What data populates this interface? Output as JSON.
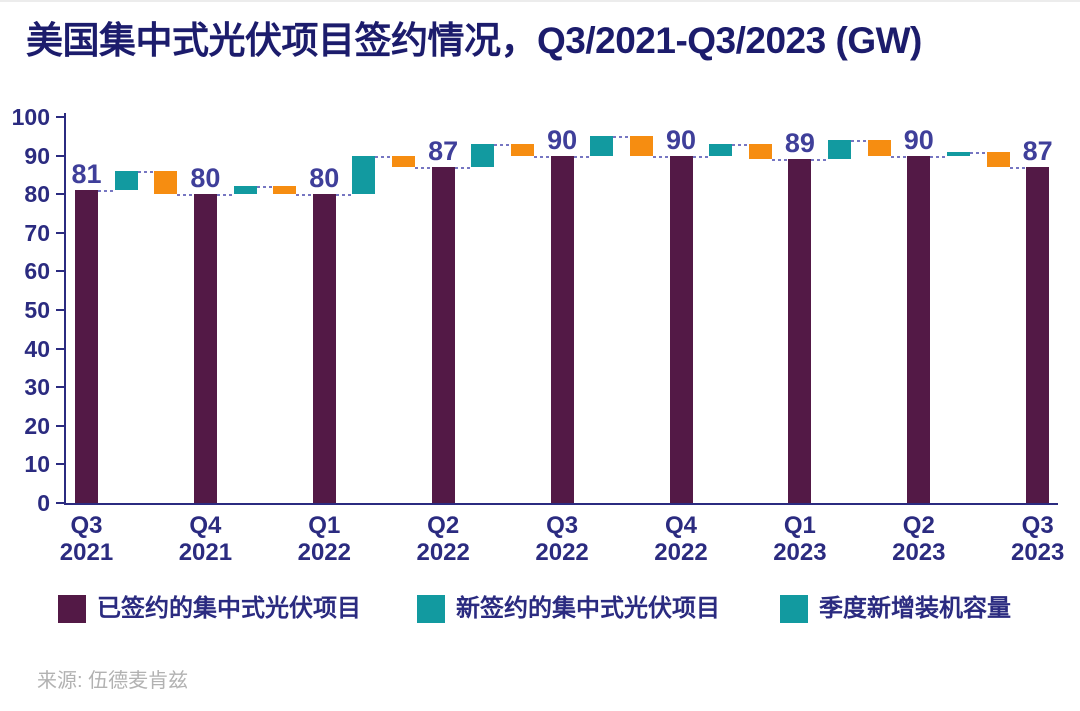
{
  "title": "美国集中式光伏项目签约情况，Q3/2021-Q3/2023 (GW)",
  "source": "来源: 伍德麦肯兹",
  "colors": {
    "backlog": "#531946",
    "new_signed": "#129aa0",
    "installed": "#f68d11",
    "axis": "#2b2b80",
    "value_label": "#3f3f9a",
    "connector": "#7676c2",
    "title": "#1c1c6c",
    "source": "#b2b2b2"
  },
  "legend": [
    {
      "label": "已签约的集中式光伏项目",
      "color": "#531946"
    },
    {
      "label": "新签约的集中式光伏项目",
      "color": "#129aa0"
    },
    {
      "label": "季度新增装机容量",
      "color": "#129aa0"
    }
  ],
  "chart_data": {
    "type": "bar",
    "subtype": "waterfall",
    "title": "美国集中式光伏项目签约情况，Q3/2021-Q3/2023 (GW)",
    "unit": "GW",
    "categories": [
      {
        "quarter": "Q3",
        "year": "2021"
      },
      {
        "quarter": "Q4",
        "year": "2021"
      },
      {
        "quarter": "Q1",
        "year": "2022"
      },
      {
        "quarter": "Q2",
        "year": "2022"
      },
      {
        "quarter": "Q3",
        "year": "2022"
      },
      {
        "quarter": "Q4",
        "year": "2022"
      },
      {
        "quarter": "Q1",
        "year": "2023"
      },
      {
        "quarter": "Q2",
        "year": "2023"
      },
      {
        "quarter": "Q3",
        "year": "2023"
      }
    ],
    "values": [
      81,
      80,
      80,
      87,
      90,
      90,
      89,
      90,
      87
    ],
    "connectors": [
      {
        "new_signed": 5,
        "installed": 6
      },
      {
        "new_signed": 2,
        "installed": 2
      },
      {
        "new_signed": 10,
        "installed": 3
      },
      {
        "new_signed": 6,
        "installed": 3
      },
      {
        "new_signed": 5,
        "installed": 5
      },
      {
        "new_signed": 3,
        "installed": 4
      },
      {
        "new_signed": 5,
        "installed": 4
      },
      {
        "new_signed": 1,
        "installed": 4
      }
    ],
    "ylim": [
      0,
      100
    ],
    "y_ticks": [
      0,
      10,
      20,
      30,
      40,
      50,
      60,
      70,
      80,
      90,
      100
    ],
    "grid": false,
    "legend_position": "bottom"
  }
}
